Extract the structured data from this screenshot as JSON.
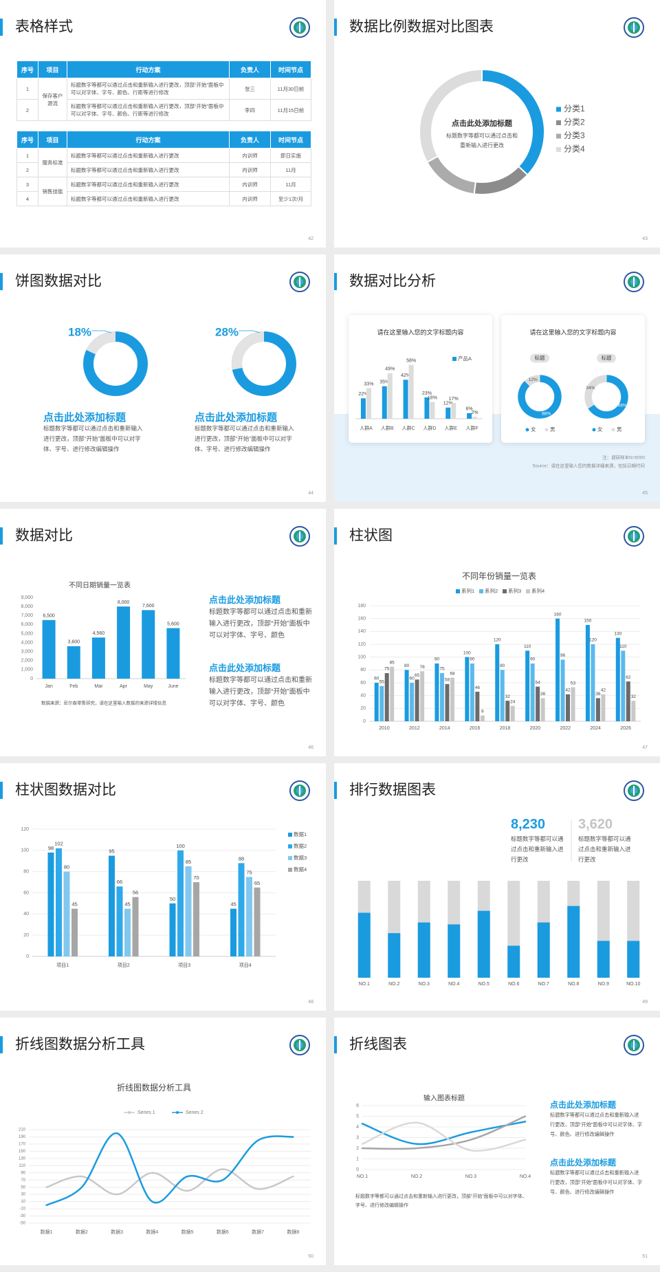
{
  "slides": [
    {
      "title": "表格样式",
      "page": 42,
      "tables": [
        {
          "headers": [
            "序号",
            "项目",
            "行动方案",
            "负责人",
            "时间节点"
          ],
          "groups": [
            {
              "label": "保存客户源流",
              "rows": [
                [
                  1,
                  "标题数字等都可以通过点击和重新输入进行更改，顶部“开始”面板中可以对字体、字号、颜色、行距等进行修改",
                  "张三",
                  "11月30日前"
                ],
                [
                  2,
                  "标题数字等都可以通过点击和重新输入进行更改，顶部“开始”面板中可以对字体、字号、颜色、行距等进行修改",
                  "李四",
                  "11月15日前"
                ]
              ]
            }
          ]
        },
        {
          "headers": [
            "序号",
            "项目",
            "行动方案",
            "负责人",
            "时间节点"
          ],
          "groups": [
            {
              "label": "服务标准",
              "rows": [
                [
                  1,
                  "标题数字等都可以通过点击和重新输入进行更改",
                  "内训师",
                  "即日实施"
                ],
                [
                  2,
                  "标题数字等都可以通过点击和重新输入进行更改",
                  "内训师",
                  "11月"
                ]
              ]
            },
            {
              "label": "销售技能",
              "rows": [
                [
                  3,
                  "标题数字等都可以通过点击和重新输入进行更改",
                  "内训师",
                  "11月"
                ],
                [
                  4,
                  "标题数字等都可以通过点击和重新输入进行更改",
                  "内训师",
                  "至少1次/月"
                ]
              ]
            }
          ]
        }
      ]
    },
    {
      "title": "数据比例数据对比图表",
      "page": 43,
      "chart_data": {
        "type": "donut",
        "title": "点击此处添加标题",
        "text_lines": [
          "标题数字等都可以通过点击和",
          "重新输入进行更改"
        ],
        "categories": [
          "分类1",
          "分类2",
          "分类3",
          "分类4"
        ],
        "values": [
          37,
          15,
          15,
          33
        ],
        "colors": [
          "#1a9be0",
          "#8c8c8c",
          "#ababab",
          "#dcdcdc"
        ]
      }
    },
    {
      "title": "饼图数据对比",
      "page": 44,
      "chart_data": [
        {
          "type": "ring",
          "values": [
            18
          ],
          "value_labels": [
            "18%"
          ],
          "color": "#e3e3e3",
          "track_color": "#1a9be0",
          "title": "点击此处添加标题",
          "text": "标题数字等都可以通过点击和重新输入进行更改，顶部“开始”面板中可以对字体、字号、进行修改编辑操作"
        },
        {
          "type": "ring",
          "values": [
            28
          ],
          "value_labels": [
            "28%"
          ],
          "color": "#e3e3e3",
          "track_color": "#1a9be0",
          "title": "点击此处添加标题",
          "text": "标题数字等都可以通过点击和重新输入进行更改，顶部“开始”面板中可以对字体、字号、进行修改编辑操作"
        }
      ]
    },
    {
      "title": "数据对比分析",
      "page": 45,
      "cards": [
        "请在这里输入您的文字标题内容",
        "请在这里输入您的文字标题内容"
      ],
      "notes": [
        "注：调研样本N=5000",
        "Source：请在这里输入您的数据详细来源，包括日期时间"
      ],
      "chart_data": [
        {
          "type": "bar",
          "categories": [
            "人群A",
            "人群B",
            "人群C",
            "人群D",
            "人群E",
            "人群F"
          ],
          "series": [
            {
              "name": "产品A",
              "color": "#1a9be0",
              "values": [
                22,
                35,
                42,
                23,
                12,
                6
              ],
              "value_labels": [
                "22%",
                "35%",
                "42%",
                "23%",
                "12%",
                "6%"
              ]
            },
            {
              "color": "#dcdcdc",
              "values": [
                33,
                49,
                58,
                18,
                17,
                2
              ],
              "value_labels": [
                "33%",
                "49%",
                "58%",
                "18%",
                "17%",
                "2%"
              ]
            }
          ]
        },
        {
          "type": "donut",
          "title": "标题",
          "categories": [
            "女",
            "男"
          ],
          "values": [
            88,
            12
          ],
          "value_labels": [
            "88%",
            "12%"
          ],
          "colors": [
            "#1a9be0",
            "#dcdcdc"
          ]
        },
        {
          "type": "donut",
          "title": "标题",
          "categories": [
            "女",
            "男"
          ],
          "values": [
            66,
            34
          ],
          "value_labels": [
            "66%",
            "34%"
          ],
          "colors": [
            "#1a9be0",
            "#dcdcdc"
          ]
        }
      ]
    },
    {
      "title": "数据对比",
      "page": 46,
      "blocks": [
        {
          "title": "点击此处添加标题",
          "text": "标题数字等都可以通过点击和重新输入进行更改，顶部“开始”面板中可以对字体、字号、颜色"
        },
        {
          "title": "点击此处添加标题",
          "text": "标题数字等都可以通过点击和重新输入进行更改，顶部“开始”面板中可以对字体、字号、颜色"
        }
      ],
      "chart_data": {
        "type": "bar",
        "title": "不同日期销量一览表",
        "categories": [
          "Jan",
          "Feb",
          "Mar",
          "Apr",
          "May",
          "June"
        ],
        "values": [
          6500,
          3600,
          4560,
          8000,
          7600,
          5600
        ],
        "value_labels": [
          "6,500",
          "3,600",
          "4,560",
          "8,000",
          "7,600",
          "5,600"
        ],
        "color": "#1a9be0",
        "ylim": [
          0,
          9000
        ],
        "yticks": [
          0,
          {
            "value": 1000,
            "label": "1,000"
          },
          {
            "value": 2000,
            "label": "2,000"
          },
          {
            "value": 3000,
            "label": "3,000"
          },
          {
            "value": 4000,
            "label": "4,000"
          },
          {
            "value": 5000,
            "label": "5,000"
          },
          {
            "value": 6000,
            "label": "6,000"
          },
          {
            "value": 7000,
            "label": "7,000"
          },
          {
            "value": 8000,
            "label": "8,000"
          },
          {
            "value": 9000,
            "label": "9,000"
          }
        ],
        "grid": false,
        "source": "数据来源：尼尔森零售研究，请在这里输入数据的来源详情信息"
      }
    },
    {
      "title": "柱状图",
      "page": 47,
      "chart_data": {
        "type": "bar",
        "title": "不同年份销量一览表",
        "categories": [
          2010,
          2012,
          2014,
          2016,
          2018,
          2020,
          2022,
          2024,
          2026
        ],
        "series": [
          {
            "name": "系列1",
            "color": "#1a9be0",
            "values": [
              60,
              80,
              90,
              100,
              120,
              110,
              160,
              150,
              130
            ]
          },
          {
            "name": "系列2",
            "color": "#5cb9ec",
            "values": [
              55,
              60,
              75,
              90,
              80,
              90,
              96,
              120,
              110
            ]
          },
          {
            "name": "系列3",
            "color": "#6b6b6b",
            "values": [
              75,
              65,
              58,
              46,
              32,
              54,
              42,
              36,
              62
            ]
          },
          {
            "name": "系列4",
            "color": "#c8c8c8",
            "values": [
              85,
              78,
              68,
              9,
              24,
              36,
              53,
              42,
              32
            ]
          }
        ],
        "ylim": [
          0,
          180
        ],
        "yticks": [
          0,
          20,
          40,
          60,
          80,
          100,
          120,
          140,
          160,
          180
        ],
        "grid": true,
        "legend": "top"
      }
    },
    {
      "title": "柱状图数据对比",
      "page": 48,
      "chart_data": {
        "type": "bar",
        "categories": [
          "项目1",
          "项目2",
          "项目3",
          "项目4"
        ],
        "series": [
          {
            "name": "数据1",
            "color": "#1a9be0",
            "values": [
              98,
              95,
              50,
              45
            ]
          },
          {
            "name": "数据2",
            "color": "#2fa9ea",
            "values": [
              102,
              66,
              100,
              88
            ]
          },
          {
            "name": "数据3",
            "color": "#80c8f0",
            "values": [
              80,
              45,
              85,
              75
            ]
          },
          {
            "name": "数据4",
            "color": "#a6a6a6",
            "values": [
              45,
              56,
              70,
              65
            ]
          }
        ],
        "ylim": [
          0,
          120
        ],
        "yticks": [
          0,
          20,
          40,
          60,
          80,
          100,
          120
        ],
        "grid": true,
        "legend": "right"
      }
    },
    {
      "title": "排行数据图表",
      "page": 49,
      "stats": [
        {
          "value": "8,230",
          "text": "标题数字等都可以通过点击和重新输入进行更改"
        },
        {
          "value": "3,620",
          "text": "标题数字等都可以通过点击和重新输入进行更改"
        }
      ],
      "chart_data": {
        "type": "progress",
        "categories": [
          "NO.1",
          "NO.2",
          "NO.3",
          "NO.4",
          "NO.5",
          "NO.6",
          "NO.7",
          "NO.8",
          "NO.9",
          "NO.10"
        ],
        "values": [
          67,
          46,
          57,
          55,
          69,
          33,
          57,
          74,
          38,
          38
        ],
        "ylim": [
          0,
          100
        ],
        "color": "#1a9be0",
        "track_color": "#d9d9d9"
      }
    },
    {
      "title": "折线图数据分析工具",
      "page": 50,
      "chart_data": {
        "type": "line",
        "title": "折线图数据分析工具",
        "categories": [
          "数据1",
          "数据2",
          "数据3",
          "数据4",
          "数据5",
          "数据6",
          "数据7",
          "数据8"
        ],
        "series": [
          {
            "name": "Series 1",
            "color": "#c8c8c8",
            "values": [
              50,
              80,
              30,
              90,
              40,
              100,
              45,
              80
            ]
          },
          {
            "name": "Series 2",
            "color": "#1a9be0",
            "values": [
              0,
              50,
              200,
              10,
              80,
              70,
              180,
              190
            ]
          }
        ],
        "ylim": [
          -50,
          210
        ],
        "yticks": [
          -50,
          -30,
          -10,
          10,
          30,
          50,
          70,
          90,
          110,
          130,
          150,
          170,
          190,
          210
        ],
        "grid": true,
        "smooth": true,
        "legend": "top"
      }
    },
    {
      "title": "折线图表",
      "page": 51,
      "blocks": [
        {
          "title": "点击此处添加标题",
          "text": "标题数字等都可以通过点击和重新输入进行更改，顶部“开始”面板中可以对字体、字号、颜色、进行修改编辑操作"
        },
        {
          "title": "点击此处添加标题",
          "text": "标题数字等都可以通过点击和重新输入进行更改，顶部“开始”面板中可以对字体、字号、颜色、进行修改编辑操作"
        }
      ],
      "note": "标题数字等都可以通过点击和重新输入进行更改，顶部“开始”面板中可以对字体、字号、进行修改编辑操作",
      "chart_data": {
        "type": "line",
        "title": "输入图表标题",
        "categories": [
          "NO.1",
          "NO.2",
          "NO.3",
          "NO.4"
        ],
        "series": [
          {
            "color": "#1a9be0",
            "values": [
              4.3,
              2.4,
              3.5,
              4.5
            ]
          },
          {
            "color": "#a6a6a6",
            "values": [
              2,
              2,
              2.8,
              5
            ]
          },
          {
            "color": "#d9d9d9",
            "values": [
              2.4,
              4.4,
              1.8,
              2.8
            ]
          }
        ],
        "ylim": [
          0,
          6
        ],
        "yticks": [
          0,
          1,
          2,
          3,
          4,
          5,
          6
        ],
        "grid": true,
        "smooth": true
      }
    }
  ]
}
